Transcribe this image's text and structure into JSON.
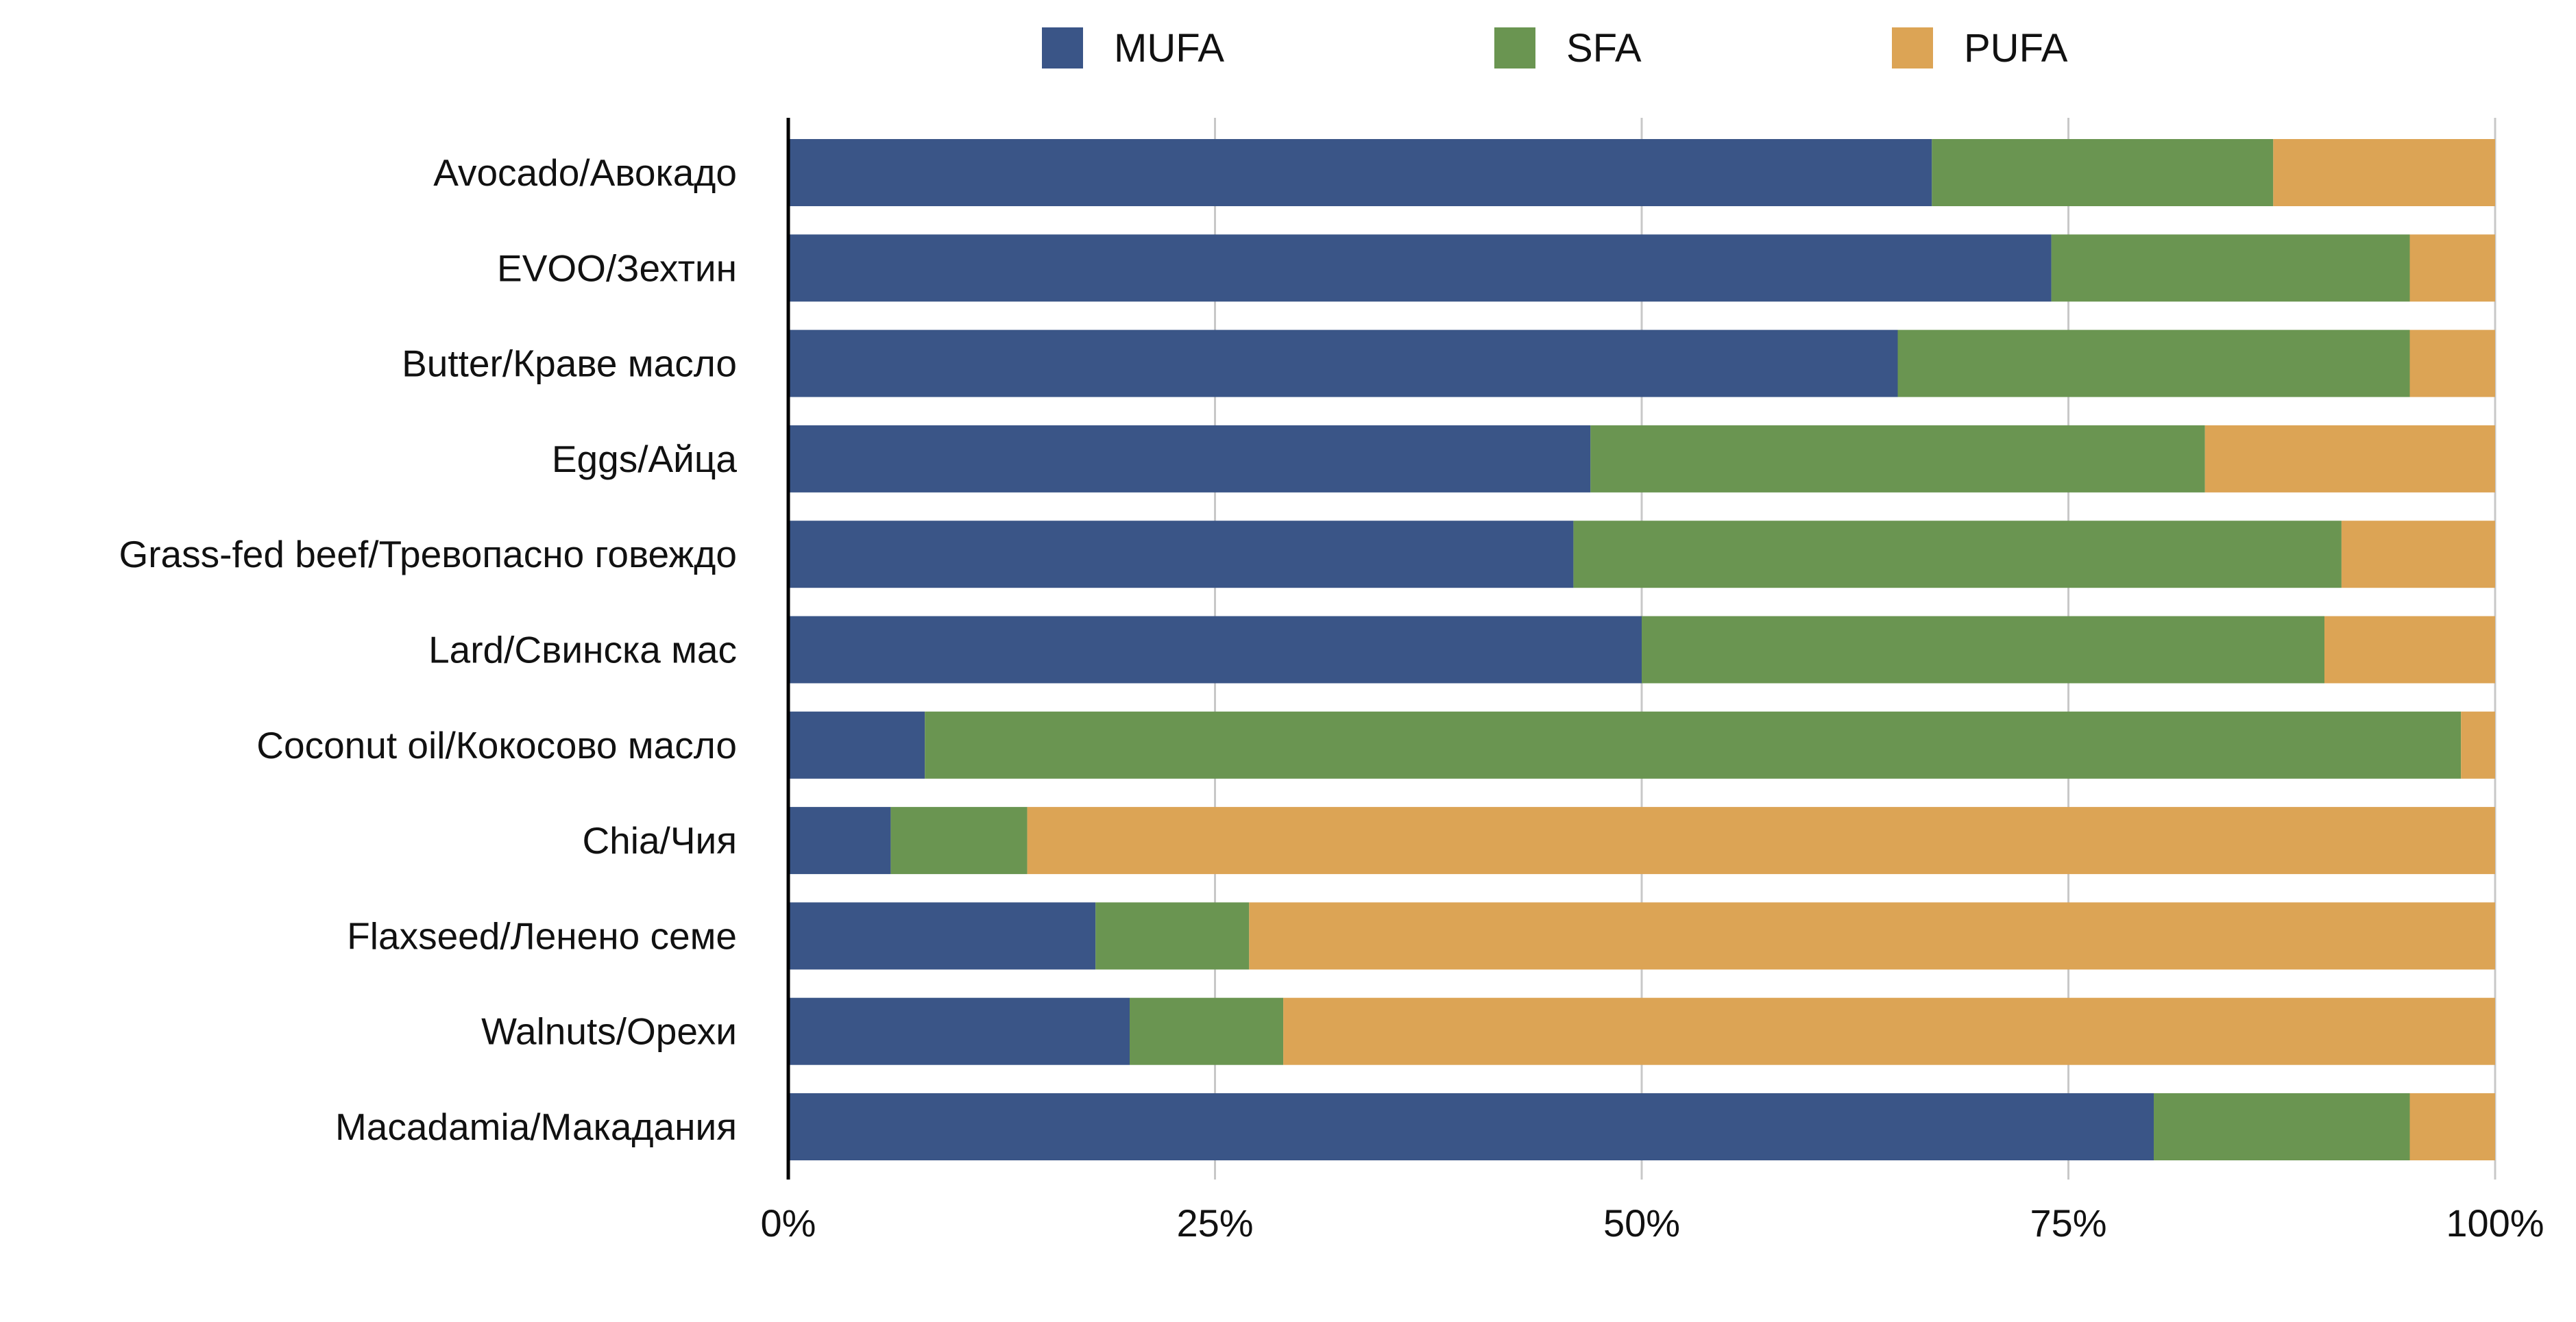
{
  "chart_data": {
    "type": "bar",
    "orientation": "horizontal",
    "stacked": "percent",
    "categories": [
      "Avocado/Авокадо",
      "EVOO/Зехтин",
      "Butter/Краве масло",
      "Eggs/Айца",
      "Grass-fed beef/Тревопасно говеждо",
      "Lard/Свинска мас",
      "Coconut oil/Кокосово масло",
      "Chia/Чия",
      "Flaxseed/Ленено семе",
      "Walnuts/Орехи",
      "Macadamia/Макадания"
    ],
    "series": [
      {
        "name": "MUFA",
        "color": "#3a5587",
        "values": [
          67,
          74,
          65,
          47,
          46,
          50,
          8,
          6,
          18,
          20,
          80
        ]
      },
      {
        "name": "SFA",
        "color": "#6a9551",
        "values": [
          20,
          21,
          30,
          36,
          45,
          40,
          90,
          8,
          9,
          9,
          15
        ]
      },
      {
        "name": "PUFA",
        "color": "#dca455",
        "values": [
          13,
          5,
          5,
          17,
          9,
          10,
          2,
          86,
          73,
          71,
          5
        ]
      }
    ],
    "xaxis": {
      "ticks": [
        "0%",
        "25%",
        "50%",
        "75%",
        "100%"
      ],
      "range": [
        0,
        100
      ]
    },
    "title": "",
    "xlabel": "",
    "ylabel": "",
    "grid": "vertical",
    "legend": "top"
  }
}
